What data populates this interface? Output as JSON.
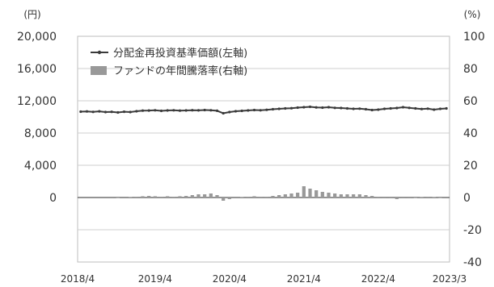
{
  "colors": {
    "nav_line": "#3a3a3a",
    "bar": "#999999",
    "grid": "#cfcfcf",
    "plot_bg": "#ffffff",
    "axis_text": "#333333"
  },
  "chart_data": {
    "type": "line",
    "left_axis_unit": "(円)",
    "right_axis_unit": "(%)",
    "y_left_ticks": [
      "20,000",
      "16,000",
      "12,000",
      "8,000",
      "4,000",
      "0"
    ],
    "y_right_ticks": [
      "100",
      "80",
      "60",
      "40",
      "20",
      "0",
      "-20",
      "-40"
    ],
    "ylim_left": [
      -8000,
      20000
    ],
    "ylim_right": [
      -40,
      100
    ],
    "x_ticks": [
      "2018/4",
      "2019/4",
      "2020/4",
      "2021/4",
      "2022/4",
      "2023/3"
    ],
    "x": [
      "2018/4",
      "2018/5",
      "2018/6",
      "2018/7",
      "2018/8",
      "2018/9",
      "2018/10",
      "2018/11",
      "2018/12",
      "2019/1",
      "2019/2",
      "2019/3",
      "2019/4",
      "2019/5",
      "2019/6",
      "2019/7",
      "2019/8",
      "2019/9",
      "2019/10",
      "2019/11",
      "2019/12",
      "2020/1",
      "2020/2",
      "2020/3",
      "2020/4",
      "2020/5",
      "2020/6",
      "2020/7",
      "2020/8",
      "2020/9",
      "2020/10",
      "2020/11",
      "2020/12",
      "2021/1",
      "2021/2",
      "2021/3",
      "2021/4",
      "2021/5",
      "2021/6",
      "2021/7",
      "2021/8",
      "2021/9",
      "2021/10",
      "2021/11",
      "2021/12",
      "2022/1",
      "2022/2",
      "2022/3",
      "2022/4",
      "2022/5",
      "2022/6",
      "2022/7",
      "2022/8",
      "2022/9",
      "2022/10",
      "2022/11",
      "2022/12",
      "2023/1",
      "2023/2",
      "2023/3"
    ],
    "grid": true,
    "legend_position": "top-left",
    "series": [
      {
        "name": "分配金再投資基準価額(左軸)",
        "kind": "line",
        "axis": "left",
        "values": [
          10650,
          10680,
          10620,
          10690,
          10600,
          10630,
          10550,
          10640,
          10600,
          10700,
          10780,
          10790,
          10820,
          10750,
          10800,
          10820,
          10780,
          10800,
          10830,
          10810,
          10850,
          10820,
          10760,
          10450,
          10600,
          10700,
          10750,
          10800,
          10850,
          10820,
          10880,
          10950,
          11000,
          11050,
          11080,
          11150,
          11200,
          11250,
          11180,
          11150,
          11200,
          11120,
          11100,
          11050,
          11000,
          11020,
          10950,
          10850,
          10900,
          11000,
          11050,
          11100,
          11200,
          11120,
          11050,
          10980,
          11020,
          10900,
          11000,
          11050
        ]
      },
      {
        "name": "ファンドの年間騰落率(右軸)",
        "kind": "bar",
        "axis": "right",
        "values": [
          0,
          0,
          0,
          0,
          0,
          -0.5,
          -0.3,
          0,
          0.3,
          0.5,
          0.8,
          1.0,
          0.8,
          0.5,
          0.8,
          0.5,
          0.8,
          1.0,
          1.5,
          2.0,
          2.0,
          2.5,
          1.5,
          -2.0,
          -1.0,
          0,
          0.3,
          0.5,
          0.8,
          0.5,
          0.5,
          1.0,
          1.5,
          2.0,
          2.5,
          3.0,
          7.0,
          5.5,
          4.5,
          3.5,
          3.0,
          2.5,
          2.0,
          2.0,
          2.0,
          2.0,
          1.5,
          1.0,
          0.5,
          -0.5,
          -0.5,
          -1.0,
          -0.5,
          -0.5,
          -0.3,
          0.3,
          0.5,
          0.3,
          -0.3,
          0
        ]
      }
    ]
  }
}
